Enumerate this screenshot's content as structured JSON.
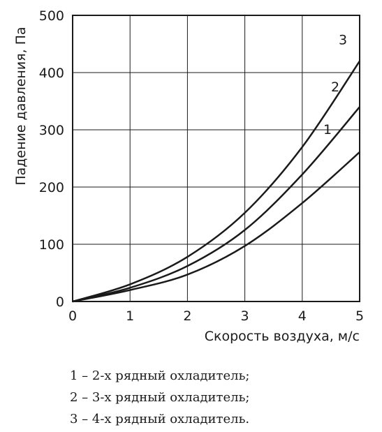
{
  "chart_data": {
    "type": "line",
    "xlabel": "Скорость воздуха, м/с",
    "ylabel": "Падение давления, Па",
    "xlim": [
      0,
      5
    ],
    "ylim": [
      0,
      500
    ],
    "x_ticks": [
      "0",
      "1",
      "2",
      "3",
      "4",
      "5"
    ],
    "y_ticks": [
      "0",
      "100",
      "200",
      "300",
      "400",
      "500"
    ],
    "grid": true,
    "series": [
      {
        "name": "1",
        "x": [
          0,
          1,
          2,
          3,
          4,
          5
        ],
        "y": [
          0,
          20,
          47,
          97,
          172,
          261
        ]
      },
      {
        "name": "2",
        "x": [
          0,
          1,
          2,
          3,
          4,
          5
        ],
        "y": [
          0,
          24,
          62,
          125,
          222,
          340
        ]
      },
      {
        "name": "3",
        "x": [
          0,
          1,
          2,
          3,
          4,
          5
        ],
        "y": [
          0,
          30,
          78,
          155,
          270,
          420
        ]
      }
    ]
  },
  "legend": [
    "1 – 2-х рядный охладитель;",
    "2 – 3-х рядный охладитель;",
    "3 – 4-х рядный охладитель."
  ]
}
